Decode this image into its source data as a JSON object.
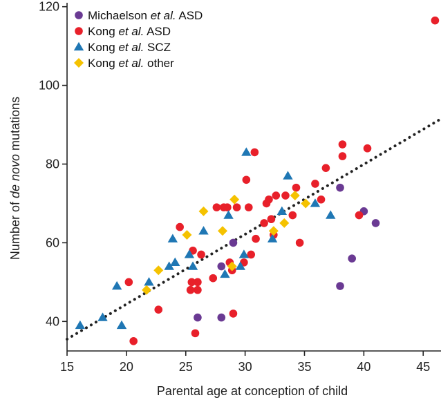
{
  "chart_data": {
    "type": "scatter",
    "xlabel": "Parental age at conception of child",
    "ylabel": {
      "pre": "Number of ",
      "ital": "de novo",
      "post": " mutations"
    },
    "xlim": [
      15,
      46.5
    ],
    "ylim": [
      32.5,
      121
    ],
    "xticks": [
      15,
      20,
      25,
      30,
      35,
      40,
      45
    ],
    "yticks": [
      40,
      60,
      80,
      100,
      120
    ],
    "legend_position": "top-left",
    "trendline": {
      "x": [
        15,
        46.5
      ],
      "y": [
        35.5,
        91.5
      ],
      "style": "dotted",
      "color": "#222222"
    },
    "series": [
      {
        "name": {
          "pre": "Michaelson ",
          "ital": "et al.",
          "post": " ASD"
        },
        "marker": "circle",
        "color": "#6a3a93",
        "points": [
          [
            26,
            41
          ],
          [
            28,
            41
          ],
          [
            28,
            54
          ],
          [
            29,
            60
          ],
          [
            38,
            49
          ],
          [
            38,
            74
          ],
          [
            39,
            56
          ],
          [
            40,
            68
          ],
          [
            41,
            65
          ]
        ]
      },
      {
        "name": {
          "pre": "Kong ",
          "ital": "et al.",
          "post": " ASD"
        },
        "marker": "circle",
        "color": "#e8202a",
        "points": [
          [
            20.2,
            50
          ],
          [
            20.6,
            35
          ],
          [
            22.7,
            43
          ],
          [
            24.5,
            64
          ],
          [
            25.4,
            48
          ],
          [
            25.5,
            50
          ],
          [
            25.6,
            58
          ],
          [
            25.8,
            37
          ],
          [
            26,
            48
          ],
          [
            26,
            50
          ],
          [
            26.3,
            57
          ],
          [
            27.3,
            51
          ],
          [
            27.6,
            69
          ],
          [
            28.2,
            69
          ],
          [
            28.5,
            69
          ],
          [
            28.7,
            55
          ],
          [
            28.9,
            53
          ],
          [
            29,
            42
          ],
          [
            29.3,
            69
          ],
          [
            29.9,
            55
          ],
          [
            30.1,
            76
          ],
          [
            30.3,
            69
          ],
          [
            30.5,
            57
          ],
          [
            30.8,
            83
          ],
          [
            30.9,
            61
          ],
          [
            31.6,
            65
          ],
          [
            31.8,
            70
          ],
          [
            32,
            71
          ],
          [
            32.2,
            66
          ],
          [
            32.4,
            62
          ],
          [
            32.6,
            72
          ],
          [
            33.4,
            72
          ],
          [
            34,
            67
          ],
          [
            34.3,
            74
          ],
          [
            34.6,
            60
          ],
          [
            35.9,
            75
          ],
          [
            36.4,
            71
          ],
          [
            36.8,
            79
          ],
          [
            38.2,
            85
          ],
          [
            38.2,
            82
          ],
          [
            39.6,
            67
          ],
          [
            40.3,
            84
          ],
          [
            46,
            116.5
          ]
        ]
      },
      {
        "name": {
          "pre": "Kong ",
          "ital": "et al.",
          "post": " SCZ"
        },
        "marker": "triangle",
        "color": "#1f77b4",
        "points": [
          [
            16.1,
            39
          ],
          [
            18,
            41
          ],
          [
            19.2,
            49
          ],
          [
            19.6,
            39
          ],
          [
            21.9,
            50
          ],
          [
            23.6,
            54
          ],
          [
            23.9,
            61
          ],
          [
            24.1,
            55
          ],
          [
            25.3,
            57
          ],
          [
            25.6,
            54
          ],
          [
            26.5,
            63
          ],
          [
            28.3,
            52
          ],
          [
            28.6,
            67
          ],
          [
            29.6,
            54
          ],
          [
            29.9,
            57
          ],
          [
            30.1,
            83
          ],
          [
            32.3,
            61
          ],
          [
            33.1,
            68
          ],
          [
            33.6,
            77
          ],
          [
            35.9,
            70
          ],
          [
            37.2,
            67
          ]
        ]
      },
      {
        "name": {
          "pre": "Kong ",
          "ital": "et al.",
          "post": " other"
        },
        "marker": "diamond",
        "color": "#f5c200",
        "points": [
          [
            21.7,
            48
          ],
          [
            22.7,
            53
          ],
          [
            25.1,
            62
          ],
          [
            26.5,
            68
          ],
          [
            28.1,
            63
          ],
          [
            28.9,
            54
          ],
          [
            29.1,
            71
          ],
          [
            32.4,
            63
          ],
          [
            33.3,
            65
          ],
          [
            34.2,
            72
          ],
          [
            35.1,
            70
          ]
        ]
      }
    ]
  }
}
